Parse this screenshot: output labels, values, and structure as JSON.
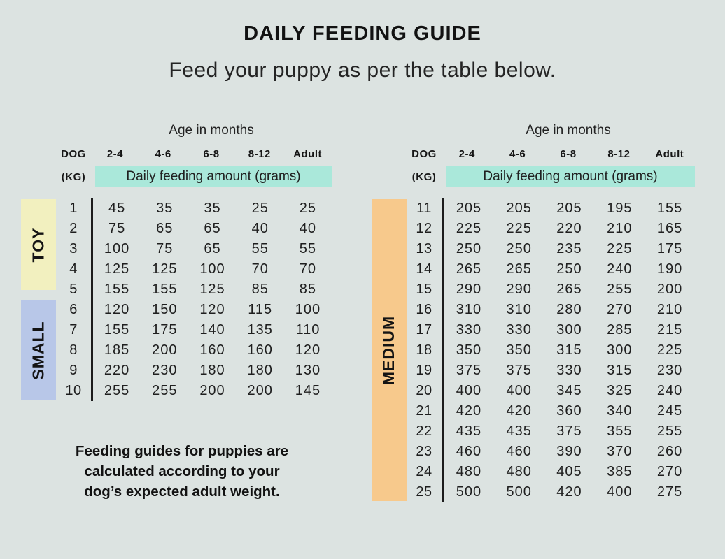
{
  "page": {
    "title": "DAILY FEEDING GUIDE",
    "subtitle": "Feed your puppy as per the table below.",
    "footnote_lines": [
      "Feeding guides for puppies are",
      "calculated according to your",
      "dog’s expected adult weight."
    ]
  },
  "colors": {
    "background": "#dce3e1",
    "banner_highlight": "#aae8da",
    "divider": "#1c1c1c",
    "toy_band": "#f2f0bf",
    "small_band": "#b8c7e8",
    "medium_band": "#f7c98c"
  },
  "tables": [
    {
      "age_header": "Age in months",
      "dog_label": "DOG",
      "kg_label": "(KG)",
      "age_columns": [
        "2-4",
        "4-6",
        "6-8",
        "8-12",
        "Adult"
      ],
      "banner": "Daily feeding amount (grams)",
      "groups": [
        {
          "label": "TOY",
          "color": "#f2f0bf",
          "rows": [
            {
              "kg": "1",
              "amounts": [
                "45",
                "35",
                "35",
                "25",
                "25"
              ]
            },
            {
              "kg": "2",
              "amounts": [
                "75",
                "65",
                "65",
                "40",
                "40"
              ]
            },
            {
              "kg": "3",
              "amounts": [
                "100",
                "75",
                "65",
                "55",
                "55"
              ]
            },
            {
              "kg": "4",
              "amounts": [
                "125",
                "125",
                "100",
                "70",
                "70"
              ]
            },
            {
              "kg": "5",
              "amounts": [
                "155",
                "155",
                "125",
                "85",
                "85"
              ]
            }
          ]
        },
        {
          "label": "SMALL",
          "color": "#b8c7e8",
          "rows": [
            {
              "kg": "6",
              "amounts": [
                "120",
                "150",
                "120",
                "115",
                "100"
              ]
            },
            {
              "kg": "7",
              "amounts": [
                "155",
                "175",
                "140",
                "135",
                "110"
              ]
            },
            {
              "kg": "8",
              "amounts": [
                "185",
                "200",
                "160",
                "160",
                "120"
              ]
            },
            {
              "kg": "9",
              "amounts": [
                "220",
                "230",
                "180",
                "180",
                "130"
              ]
            },
            {
              "kg": "10",
              "amounts": [
                "255",
                "255",
                "200",
                "200",
                "145"
              ]
            }
          ]
        }
      ]
    },
    {
      "age_header": "Age in months",
      "dog_label": "DOG",
      "kg_label": "(KG)",
      "age_columns": [
        "2-4",
        "4-6",
        "6-8",
        "8-12",
        "Adult"
      ],
      "banner": "Daily feeding amount (grams)",
      "groups": [
        {
          "label": "MEDIUM",
          "color": "#f7c98c",
          "rows": [
            {
              "kg": "11",
              "amounts": [
                "205",
                "205",
                "205",
                "195",
                "155"
              ]
            },
            {
              "kg": "12",
              "amounts": [
                "225",
                "225",
                "220",
                "210",
                "165"
              ]
            },
            {
              "kg": "13",
              "amounts": [
                "250",
                "250",
                "235",
                "225",
                "175"
              ]
            },
            {
              "kg": "14",
              "amounts": [
                "265",
                "265",
                "250",
                "240",
                "190"
              ]
            },
            {
              "kg": "15",
              "amounts": [
                "290",
                "290",
                "265",
                "255",
                "200"
              ]
            },
            {
              "kg": "16",
              "amounts": [
                "310",
                "310",
                "280",
                "270",
                "210"
              ]
            },
            {
              "kg": "17",
              "amounts": [
                "330",
                "330",
                "300",
                "285",
                "215"
              ]
            },
            {
              "kg": "18",
              "amounts": [
                "350",
                "350",
                "315",
                "300",
                "225"
              ]
            },
            {
              "kg": "19",
              "amounts": [
                "375",
                "375",
                "330",
                "315",
                "230"
              ]
            },
            {
              "kg": "20",
              "amounts": [
                "400",
                "400",
                "345",
                "325",
                "240"
              ]
            },
            {
              "kg": "21",
              "amounts": [
                "420",
                "420",
                "360",
                "340",
                "245"
              ]
            },
            {
              "kg": "22",
              "amounts": [
                "435",
                "435",
                "375",
                "355",
                "255"
              ]
            },
            {
              "kg": "23",
              "amounts": [
                "460",
                "460",
                "390",
                "370",
                "260"
              ]
            },
            {
              "kg": "24",
              "amounts": [
                "480",
                "480",
                "405",
                "385",
                "270"
              ]
            },
            {
              "kg": "25",
              "amounts": [
                "500",
                "500",
                "420",
                "400",
                "275"
              ]
            }
          ]
        }
      ]
    }
  ]
}
